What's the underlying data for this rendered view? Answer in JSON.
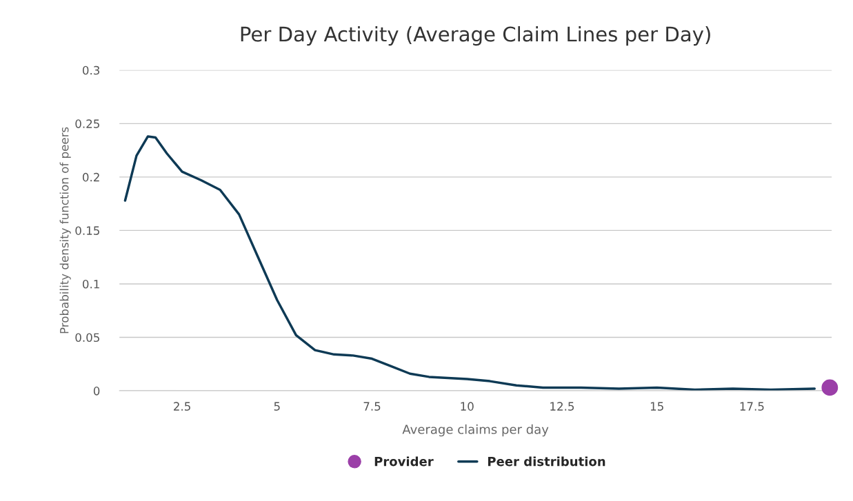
{
  "chart_data": {
    "type": "line",
    "title": "Per Day Activity (Average Claim Lines per Day)",
    "xlabel": "Average claims per day",
    "ylabel": "Probability density function of peers",
    "xlim": [
      0.85,
      19.6
    ],
    "xticks": [
      2.5,
      5,
      7.5,
      10,
      12.5,
      15,
      17.5
    ],
    "ylim": [
      0,
      0.3
    ],
    "yticks": [
      0,
      0.05,
      0.1,
      0.15,
      0.2,
      0.25,
      0.3
    ],
    "grid": "y",
    "legend": "bottom",
    "series": [
      {
        "name": "Provider",
        "type": "scatter",
        "color": "#9b3fa8",
        "marker": "circle",
        "x": [
          19.55
        ],
        "values": [
          0.003
        ]
      },
      {
        "name": "Peer distribution",
        "color": "#0e3a55",
        "marker": "none",
        "line_style": "solid",
        "x": [
          1.0,
          1.3,
          1.6,
          1.8,
          2.1,
          2.5,
          3.0,
          3.5,
          4.0,
          4.5,
          5.0,
          5.5,
          6.0,
          6.5,
          7.0,
          7.5,
          8.0,
          8.5,
          9.0,
          10.0,
          10.6,
          11.3,
          12.0,
          13.0,
          14.0,
          15.0,
          16.0,
          17.0,
          18.0,
          19.15
        ],
        "values": [
          0.178,
          0.22,
          0.238,
          0.237,
          0.222,
          0.205,
          0.197,
          0.188,
          0.165,
          0.125,
          0.085,
          0.052,
          0.038,
          0.034,
          0.033,
          0.03,
          0.023,
          0.016,
          0.013,
          0.011,
          0.009,
          0.005,
          0.003,
          0.003,
          0.002,
          0.003,
          0.001,
          0.002,
          0.001,
          0.002
        ]
      }
    ]
  }
}
